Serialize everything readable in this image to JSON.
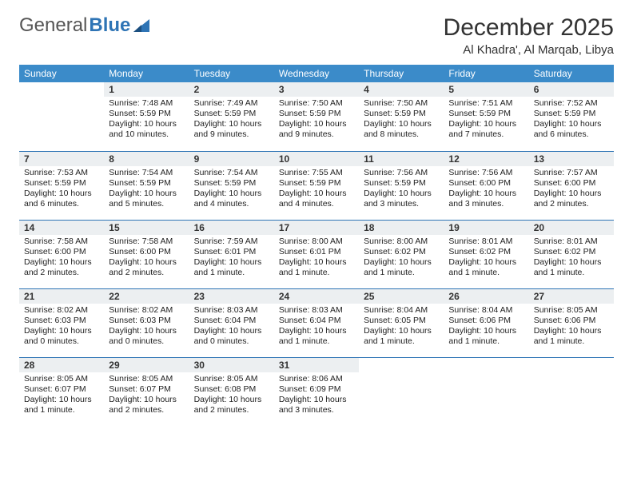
{
  "brand": {
    "part1": "General",
    "part2": "Blue"
  },
  "title": "December 2025",
  "location": "Al Khadra', Al Marqab, Libya",
  "colors": {
    "header_bg": "#3b8bc9",
    "header_text": "#ffffff",
    "daynum_bg": "#eceff1",
    "row_border": "#2e74b5",
    "brand_gray": "#555555",
    "brand_blue": "#2e74b5"
  },
  "weekdays": [
    "Sunday",
    "Monday",
    "Tuesday",
    "Wednesday",
    "Thursday",
    "Friday",
    "Saturday"
  ],
  "first_weekday": 1,
  "days": [
    {
      "n": 1,
      "sunrise": "7:48 AM",
      "sunset": "5:59 PM",
      "daylight": "10 hours and 10 minutes."
    },
    {
      "n": 2,
      "sunrise": "7:49 AM",
      "sunset": "5:59 PM",
      "daylight": "10 hours and 9 minutes."
    },
    {
      "n": 3,
      "sunrise": "7:50 AM",
      "sunset": "5:59 PM",
      "daylight": "10 hours and 9 minutes."
    },
    {
      "n": 4,
      "sunrise": "7:50 AM",
      "sunset": "5:59 PM",
      "daylight": "10 hours and 8 minutes."
    },
    {
      "n": 5,
      "sunrise": "7:51 AM",
      "sunset": "5:59 PM",
      "daylight": "10 hours and 7 minutes."
    },
    {
      "n": 6,
      "sunrise": "7:52 AM",
      "sunset": "5:59 PM",
      "daylight": "10 hours and 6 minutes."
    },
    {
      "n": 7,
      "sunrise": "7:53 AM",
      "sunset": "5:59 PM",
      "daylight": "10 hours and 6 minutes."
    },
    {
      "n": 8,
      "sunrise": "7:54 AM",
      "sunset": "5:59 PM",
      "daylight": "10 hours and 5 minutes."
    },
    {
      "n": 9,
      "sunrise": "7:54 AM",
      "sunset": "5:59 PM",
      "daylight": "10 hours and 4 minutes."
    },
    {
      "n": 10,
      "sunrise": "7:55 AM",
      "sunset": "5:59 PM",
      "daylight": "10 hours and 4 minutes."
    },
    {
      "n": 11,
      "sunrise": "7:56 AM",
      "sunset": "5:59 PM",
      "daylight": "10 hours and 3 minutes."
    },
    {
      "n": 12,
      "sunrise": "7:56 AM",
      "sunset": "6:00 PM",
      "daylight": "10 hours and 3 minutes."
    },
    {
      "n": 13,
      "sunrise": "7:57 AM",
      "sunset": "6:00 PM",
      "daylight": "10 hours and 2 minutes."
    },
    {
      "n": 14,
      "sunrise": "7:58 AM",
      "sunset": "6:00 PM",
      "daylight": "10 hours and 2 minutes."
    },
    {
      "n": 15,
      "sunrise": "7:58 AM",
      "sunset": "6:00 PM",
      "daylight": "10 hours and 2 minutes."
    },
    {
      "n": 16,
      "sunrise": "7:59 AM",
      "sunset": "6:01 PM",
      "daylight": "10 hours and 1 minute."
    },
    {
      "n": 17,
      "sunrise": "8:00 AM",
      "sunset": "6:01 PM",
      "daylight": "10 hours and 1 minute."
    },
    {
      "n": 18,
      "sunrise": "8:00 AM",
      "sunset": "6:02 PM",
      "daylight": "10 hours and 1 minute."
    },
    {
      "n": 19,
      "sunrise": "8:01 AM",
      "sunset": "6:02 PM",
      "daylight": "10 hours and 1 minute."
    },
    {
      "n": 20,
      "sunrise": "8:01 AM",
      "sunset": "6:02 PM",
      "daylight": "10 hours and 1 minute."
    },
    {
      "n": 21,
      "sunrise": "8:02 AM",
      "sunset": "6:03 PM",
      "daylight": "10 hours and 0 minutes."
    },
    {
      "n": 22,
      "sunrise": "8:02 AM",
      "sunset": "6:03 PM",
      "daylight": "10 hours and 0 minutes."
    },
    {
      "n": 23,
      "sunrise": "8:03 AM",
      "sunset": "6:04 PM",
      "daylight": "10 hours and 0 minutes."
    },
    {
      "n": 24,
      "sunrise": "8:03 AM",
      "sunset": "6:04 PM",
      "daylight": "10 hours and 1 minute."
    },
    {
      "n": 25,
      "sunrise": "8:04 AM",
      "sunset": "6:05 PM",
      "daylight": "10 hours and 1 minute."
    },
    {
      "n": 26,
      "sunrise": "8:04 AM",
      "sunset": "6:06 PM",
      "daylight": "10 hours and 1 minute."
    },
    {
      "n": 27,
      "sunrise": "8:05 AM",
      "sunset": "6:06 PM",
      "daylight": "10 hours and 1 minute."
    },
    {
      "n": 28,
      "sunrise": "8:05 AM",
      "sunset": "6:07 PM",
      "daylight": "10 hours and 1 minute."
    },
    {
      "n": 29,
      "sunrise": "8:05 AM",
      "sunset": "6:07 PM",
      "daylight": "10 hours and 2 minutes."
    },
    {
      "n": 30,
      "sunrise": "8:05 AM",
      "sunset": "6:08 PM",
      "daylight": "10 hours and 2 minutes."
    },
    {
      "n": 31,
      "sunrise": "8:06 AM",
      "sunset": "6:09 PM",
      "daylight": "10 hours and 3 minutes."
    }
  ],
  "labels": {
    "sunrise": "Sunrise:",
    "sunset": "Sunset:",
    "daylight": "Daylight:"
  }
}
